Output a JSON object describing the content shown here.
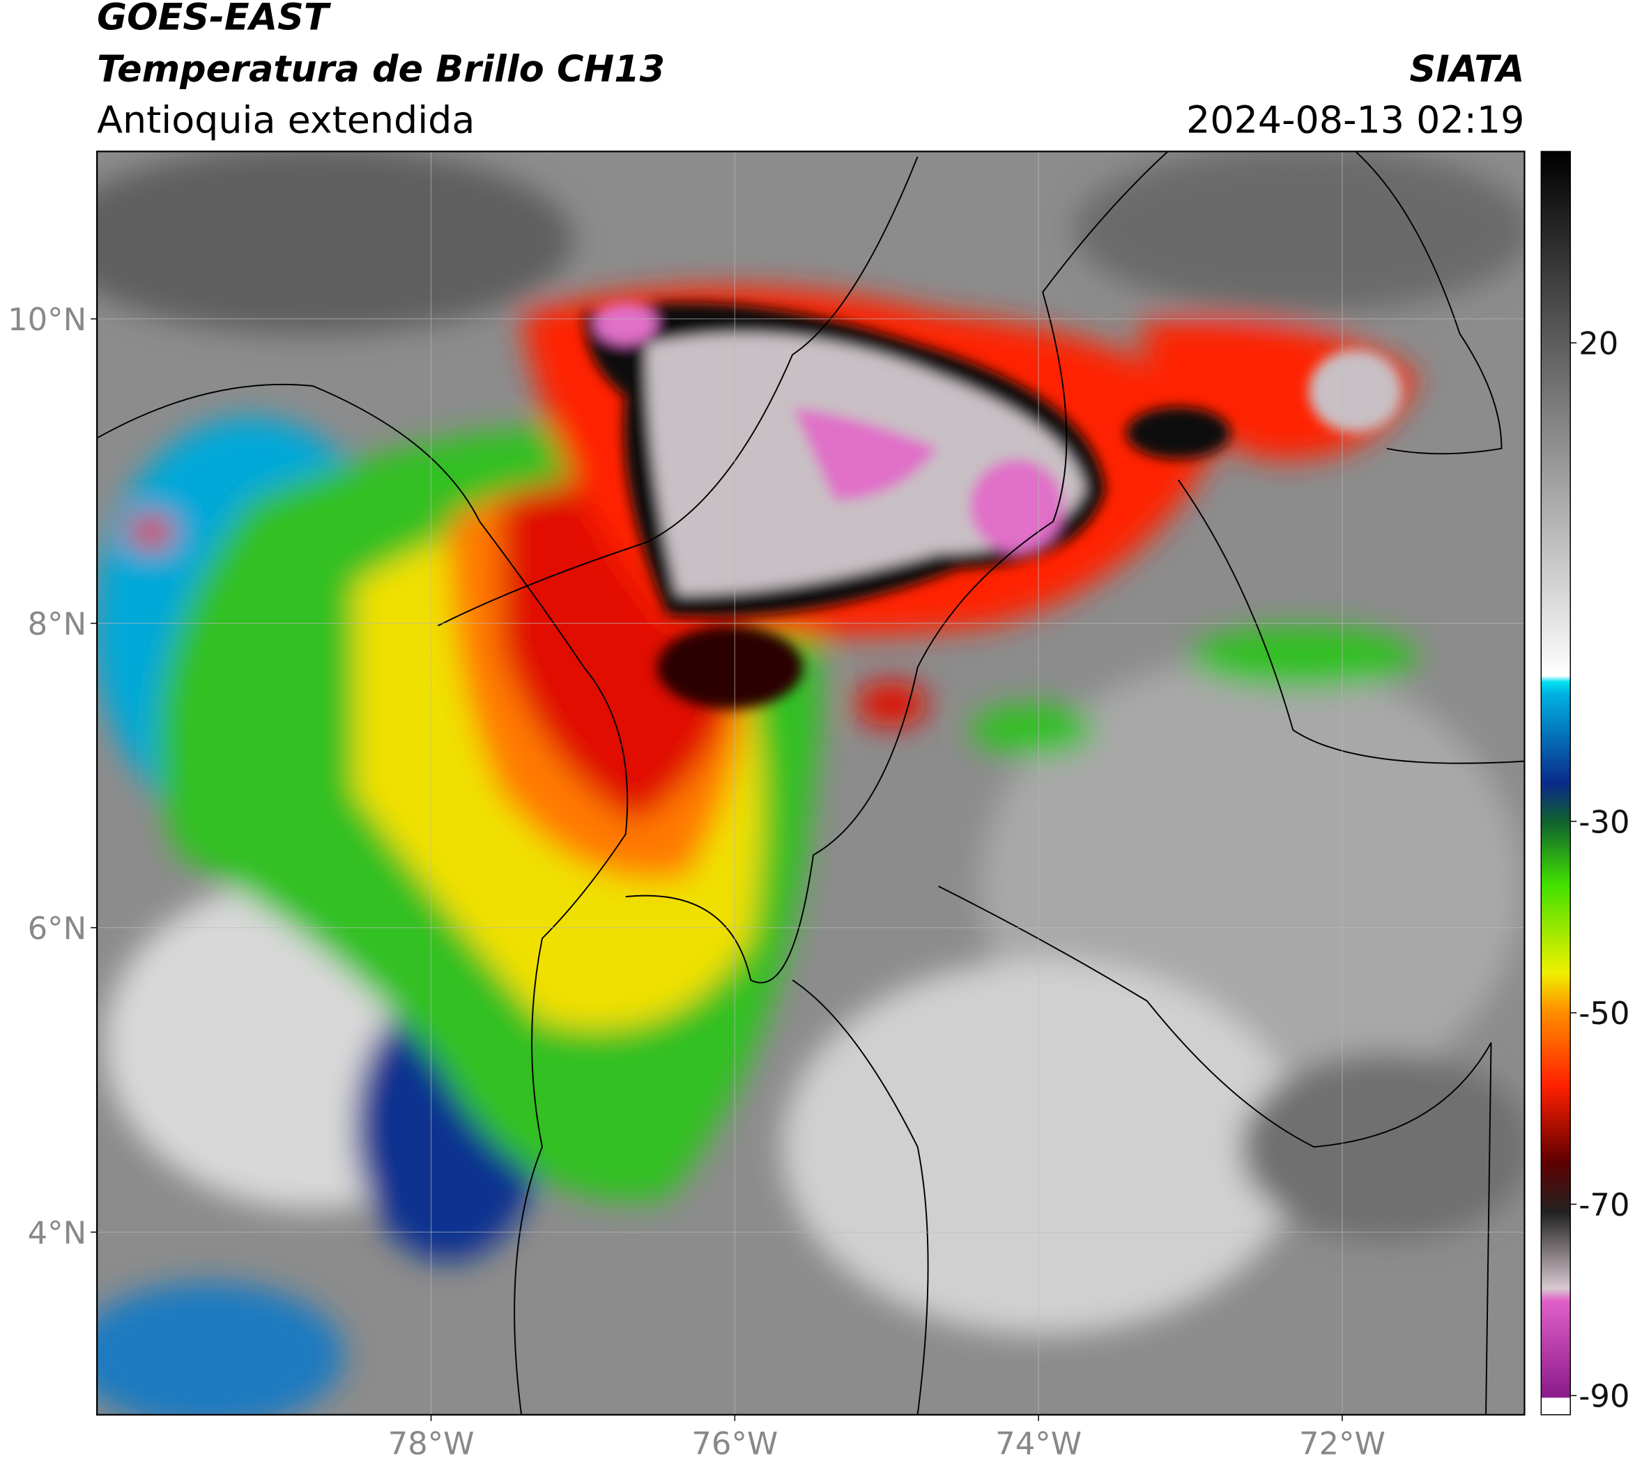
{
  "header": {
    "title": "GOES-EAST",
    "subtitle": "Temperatura de Brillo CH13",
    "region": "Antioquia extendida",
    "source": "SIATA",
    "datetime": "2024-08-13 02:19"
  },
  "map": {
    "xlim": [
      -80.2,
      -70.8
    ],
    "ylim": [
      2.8,
      11.1
    ],
    "xticks": [
      {
        "value": -78,
        "label": "78°W"
      },
      {
        "value": -76,
        "label": "76°W"
      },
      {
        "value": -74,
        "label": "74°W"
      },
      {
        "value": -72,
        "label": "72°W"
      }
    ],
    "yticks": [
      {
        "value": 4,
        "label": "4°N"
      },
      {
        "value": 6,
        "label": "6°N"
      },
      {
        "value": 8,
        "label": "8°N"
      },
      {
        "value": 10,
        "label": "10°N"
      }
    ],
    "grid": true
  },
  "colorbar": {
    "lim": [
      -92,
      40
    ],
    "ticks": [
      20,
      -30,
      -50,
      -70,
      -90
    ]
  }
}
